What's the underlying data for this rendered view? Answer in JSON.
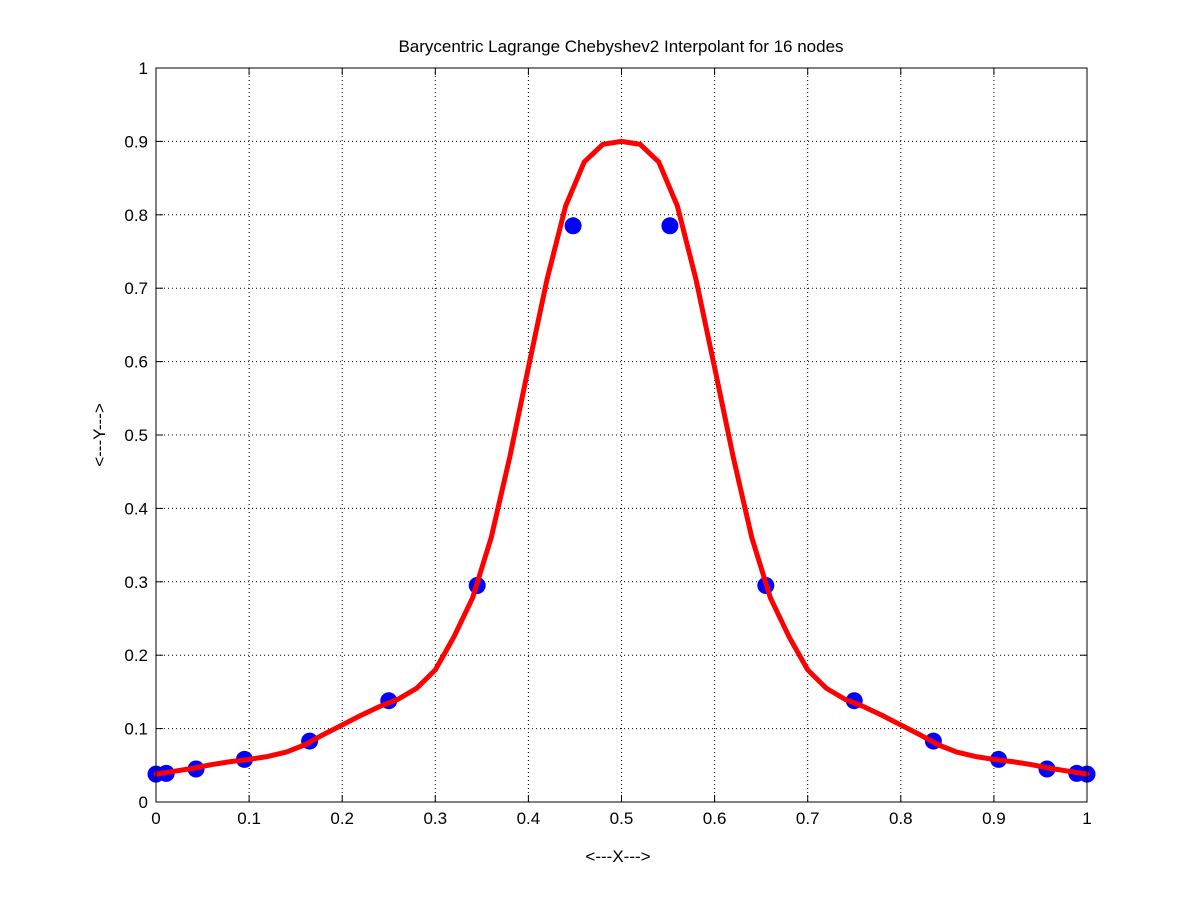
{
  "chart_data": {
    "type": "line",
    "title": "Barycentric Lagrange Chebyshev2 Interpolant for 16 nodes",
    "xlabel": "<---X--->",
    "ylabel": "<---Y--->",
    "xlim": [
      0,
      1
    ],
    "ylim": [
      0,
      1
    ],
    "xticks": [
      "0",
      "0.1",
      "0.2",
      "0.3",
      "0.4",
      "0.5",
      "0.6",
      "0.7",
      "0.8",
      "0.9",
      "1"
    ],
    "yticks": [
      "0",
      "0.1",
      "0.2",
      "0.3",
      "0.4",
      "0.5",
      "0.6",
      "0.7",
      "0.8",
      "0.9",
      "1"
    ],
    "grid": true,
    "series": [
      {
        "kind": "scatter",
        "color": "#0000ff",
        "x": [
          0.0,
          0.011,
          0.043,
          0.095,
          0.165,
          0.25,
          0.345,
          0.448,
          0.552,
          0.655,
          0.75,
          0.835,
          0.905,
          0.957,
          0.989,
          1.0
        ],
        "y": [
          0.038,
          0.039,
          0.045,
          0.058,
          0.083,
          0.138,
          0.295,
          0.785,
          0.785,
          0.295,
          0.138,
          0.083,
          0.058,
          0.045,
          0.039,
          0.038
        ]
      },
      {
        "kind": "line",
        "color": "#ff0000",
        "x": [
          0.0,
          0.02,
          0.04,
          0.06,
          0.08,
          0.1,
          0.12,
          0.14,
          0.16,
          0.18,
          0.2,
          0.22,
          0.24,
          0.26,
          0.28,
          0.3,
          0.32,
          0.34,
          0.36,
          0.38,
          0.4,
          0.42,
          0.44,
          0.46,
          0.48,
          0.5,
          0.52,
          0.54,
          0.56,
          0.58,
          0.6,
          0.62,
          0.64,
          0.66,
          0.68,
          0.7,
          0.72,
          0.74,
          0.76,
          0.78,
          0.8,
          0.82,
          0.84,
          0.86,
          0.88,
          0.9,
          0.92,
          0.94,
          0.96,
          0.98,
          1.0
        ],
        "y": [
          0.038,
          0.042,
          0.046,
          0.051,
          0.055,
          0.058,
          0.062,
          0.068,
          0.078,
          0.092,
          0.105,
          0.118,
          0.13,
          0.14,
          0.155,
          0.18,
          0.225,
          0.278,
          0.36,
          0.47,
          0.592,
          0.712,
          0.812,
          0.872,
          0.896,
          0.9,
          0.896,
          0.872,
          0.812,
          0.712,
          0.592,
          0.47,
          0.36,
          0.278,
          0.225,
          0.18,
          0.155,
          0.14,
          0.13,
          0.118,
          0.105,
          0.092,
          0.078,
          0.068,
          0.062,
          0.058,
          0.055,
          0.051,
          0.046,
          0.042,
          0.038
        ]
      }
    ]
  }
}
